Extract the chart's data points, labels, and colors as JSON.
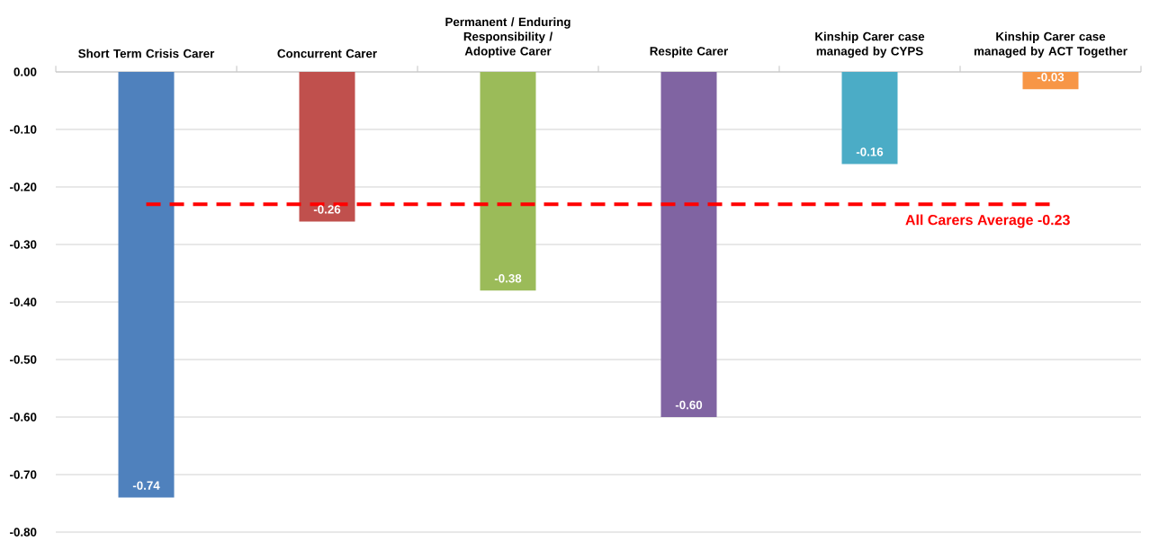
{
  "chart_data": {
    "type": "bar",
    "categories": [
      "Short Term Crisis Carer",
      "Concurrent Carer",
      "Permanent / Enduring Responsibility / Adoptive Carer",
      "Respite Carer",
      "Kinship Carer case managed by CYPS",
      "Kinship Carer case managed by ACT Together"
    ],
    "values": [
      -0.74,
      -0.26,
      -0.38,
      -0.6,
      -0.16,
      -0.03
    ],
    "value_labels": [
      "-0.74",
      "-0.26",
      "-0.38",
      "-0.60",
      "-0.16",
      "-0.03"
    ],
    "colors": [
      "#4f81bd",
      "#c0504d",
      "#9bbb59",
      "#8064a2",
      "#4bacc6",
      "#f79646"
    ],
    "ylim": [
      -0.8,
      0
    ],
    "yticks": [
      {
        "value": 0,
        "label": "0.00"
      },
      {
        "value": -0.1,
        "label": "-0.10"
      },
      {
        "value": -0.2,
        "label": "-0.20"
      },
      {
        "value": -0.3,
        "label": "-0.30"
      },
      {
        "value": -0.4,
        "label": "-0.40"
      },
      {
        "value": -0.5,
        "label": "-0.50"
      },
      {
        "value": -0.6,
        "label": "-0.60"
      },
      {
        "value": -0.7,
        "label": "-0.70"
      },
      {
        "value": -0.8,
        "label": "-0.80"
      }
    ],
    "grid": "y",
    "ref_lines": [
      {
        "axis": "y",
        "value": -0.23,
        "label": "All Carers Average -0.23",
        "color": "#ff0000",
        "line_style": "dashed"
      }
    ]
  }
}
